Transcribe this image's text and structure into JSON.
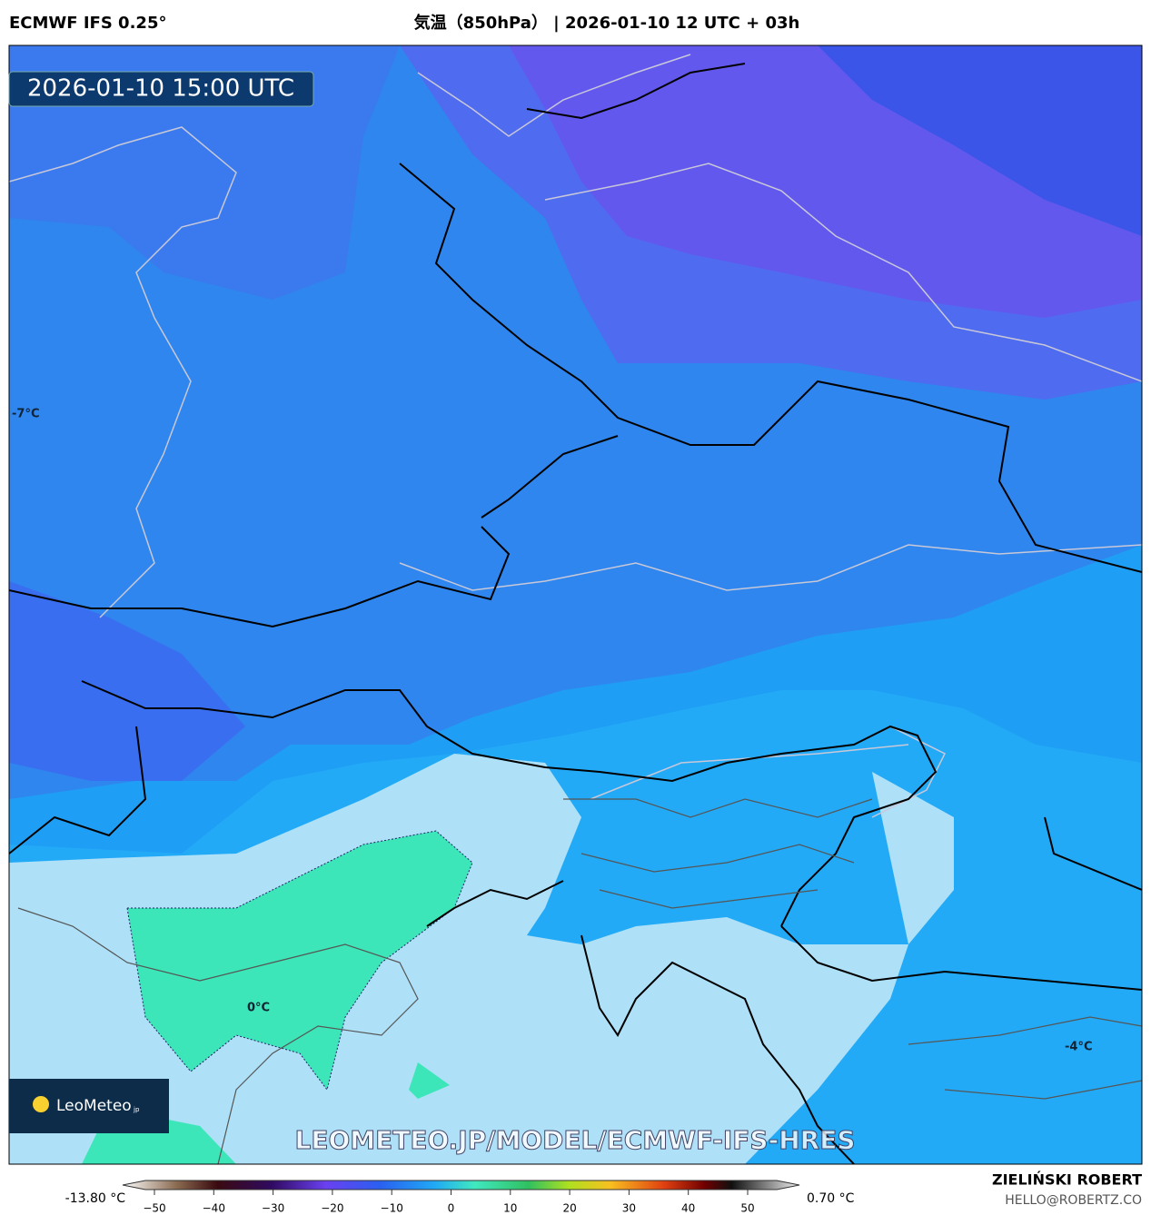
{
  "header": {
    "model": "ECMWF IFS 0.25°",
    "title": "気温（850hPa） | 2026-01-10 12 UTC + 03h"
  },
  "map": {
    "timestamp": "2026-01-10 15:00 UTC",
    "contour_labels": [
      "-7°C",
      "0°C",
      "-4°C"
    ],
    "watermark": "LEOMETEO.JP/MODEL/ECMWF-IFS-HRES",
    "logo": {
      "name": "LeoMeteo",
      "suffix": "jp"
    }
  },
  "colorbar": {
    "min_label": "-13.80 °C",
    "max_label": "0.70 °C",
    "ticks": [
      "−50",
      "−40",
      "−30",
      "−20",
      "−10",
      "0",
      "10",
      "20",
      "30",
      "40",
      "50"
    ]
  },
  "footer": {
    "author": "ZIELIŃSKI ROBERT",
    "email": "HELLO@ROBERTZ.CO"
  }
}
